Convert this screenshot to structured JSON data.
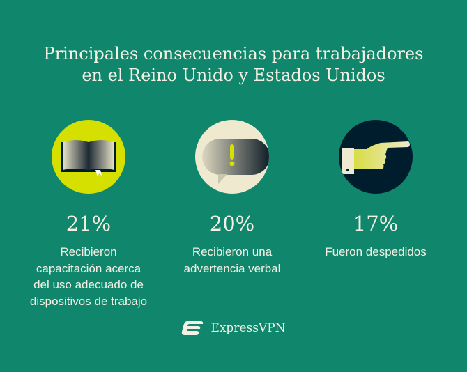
{
  "title": {
    "line1": "Principales consecuencias para trabajadores",
    "line2": "en el Reino Unido y Estados Unidos"
  },
  "stats": [
    {
      "icon": "book-icon",
      "percent": "21%",
      "value": 21,
      "lines": [
        "Recibieron",
        "capacitación acerca",
        "del uso adecuado de",
        "dispositivos de trabajo"
      ],
      "circle_color": "#d6e000"
    },
    {
      "icon": "speech-bubble-exclamation-icon",
      "percent": "20%",
      "value": 20,
      "lines": [
        "Recibieron una",
        "advertencia verbal"
      ],
      "circle_color": "#efe9d0"
    },
    {
      "icon": "pointing-hand-icon",
      "percent": "17%",
      "value": 17,
      "lines": [
        "Fueron despedidos"
      ],
      "circle_color": "#001d2e"
    }
  ],
  "brand": {
    "name": "ExpressVPN"
  },
  "colors": {
    "background": "#10876c",
    "lime": "#d6e000",
    "cream": "#efe9d0",
    "navy": "#001d2e"
  }
}
